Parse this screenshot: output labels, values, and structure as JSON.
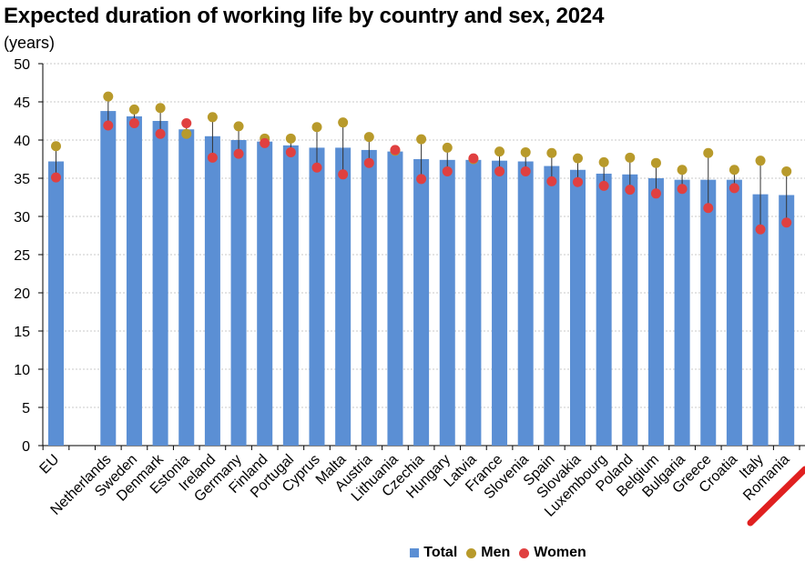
{
  "chart_data": {
    "type": "bar",
    "title": "Expected duration of working life by country and sex, 2024",
    "ylabel": "(years)",
    "xlabel": "",
    "ylim": [
      0,
      50
    ],
    "yticks": [
      0,
      5,
      10,
      15,
      20,
      25,
      30,
      35,
      40,
      45,
      50
    ],
    "grid": true,
    "legend_position": "bottom",
    "categories": [
      "EU",
      "",
      "Netherlands",
      "Sweden",
      "Denmark",
      "Estonia",
      "Ireland",
      "Germany",
      "Finland",
      "Portugal",
      "Cyprus",
      "Malta",
      "Austria",
      "Lithuania",
      "Czechia",
      "Hungary",
      "Latvia",
      "France",
      "Slovenia",
      "Spain",
      "Slovakia",
      "Luxembourg",
      "Poland",
      "Belgium",
      "Bulgaria",
      "Greece",
      "Croatia",
      "Italy",
      "Romania"
    ],
    "series": [
      {
        "name": "Total",
        "kind": "bar",
        "color": "#5B8FD4",
        "values": [
          37.2,
          null,
          43.8,
          43.1,
          42.5,
          41.4,
          40.5,
          40.0,
          39.8,
          39.3,
          39.0,
          39.0,
          38.7,
          38.5,
          37.5,
          37.4,
          37.4,
          37.3,
          37.2,
          36.6,
          36.1,
          35.6,
          35.5,
          35.0,
          34.8,
          34.8,
          34.8,
          32.9,
          32.8
        ]
      },
      {
        "name": "Men",
        "kind": "point",
        "color": "#B89A2B",
        "values": [
          39.2,
          null,
          45.7,
          44.0,
          44.2,
          40.8,
          43.0,
          41.8,
          40.2,
          40.2,
          41.7,
          42.3,
          40.4,
          38.6,
          40.1,
          39.0,
          37.5,
          38.5,
          38.4,
          38.3,
          37.6,
          37.1,
          37.7,
          37.0,
          36.1,
          38.3,
          36.1,
          37.3,
          35.9
        ]
      },
      {
        "name": "Women",
        "kind": "point",
        "color": "#E04040",
        "values": [
          35.1,
          null,
          41.9,
          42.2,
          40.8,
          42.2,
          37.7,
          38.2,
          39.6,
          38.4,
          36.4,
          35.5,
          37.0,
          38.7,
          34.9,
          35.9,
          37.6,
          35.9,
          35.9,
          34.6,
          34.5,
          34.0,
          33.5,
          33.0,
          33.6,
          31.1,
          33.7,
          28.3,
          29.2
        ]
      }
    ]
  }
}
